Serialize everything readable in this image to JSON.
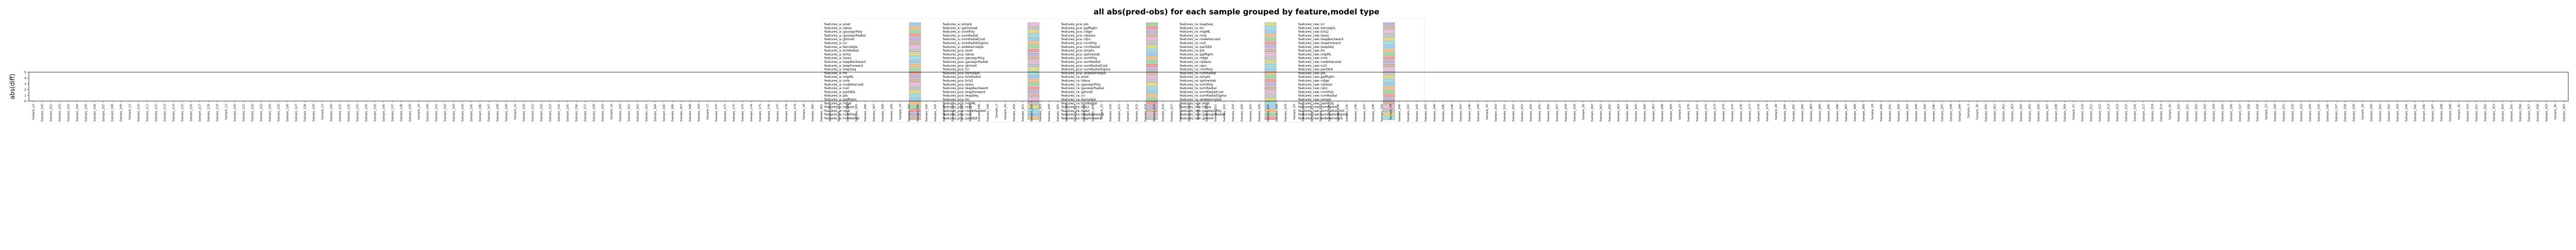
{
  "chart_data": {
    "type": "bar",
    "title": "all abs(pred-obs) for each sample grouped by feature,model type",
    "xlabel": "",
    "ylabel": "abs(diff)",
    "ylim": [
      0,
      5
    ],
    "yticks": [
      "0",
      "1",
      "2",
      "3",
      "4",
      "5"
    ],
    "y_values_legible": false,
    "legend_location": "upper-center",
    "legend_columns": 5,
    "categories": [
      "Sample_10",
      "Sample_100",
      "Sample_101",
      "Sample_102",
      "Sample_103",
      "Sample_104",
      "Sample_105",
      "Sample_106",
      "Sample_107",
      "Sample_108",
      "Sample_109",
      "Sample_11",
      "Sample_110",
      "Sample_111",
      "Sample_112",
      "Sample_113",
      "Sample_114",
      "Sample_115",
      "Sample_116",
      "Sample_117",
      "Sample_118",
      "Sample_119",
      "Sample_12",
      "Sample_120",
      "Sample_121",
      "Sample_122",
      "Sample_123",
      "Sample_124",
      "Sample_125",
      "Sample_126",
      "Sample_127",
      "Sample_128",
      "Sample_129",
      "Sample_13",
      "Sample_130",
      "Sample_131",
      "Sample_132",
      "Sample_133",
      "Sample_134",
      "Sample_135",
      "Sample_136",
      "Sample_137",
      "Sample_138",
      "Sample_139",
      "Sample_14",
      "Sample_140",
      "Sample_141",
      "Sample_142",
      "Sample_143",
      "Sample_144",
      "Sample_145",
      "Sample_146",
      "Sample_147",
      "Sample_148",
      "Sample_149",
      "Sample_15",
      "Sample_150",
      "Sample_151",
      "Sample_152",
      "Sample_153",
      "Sample_154",
      "Sample_155",
      "Sample_156",
      "Sample_157",
      "Sample_158",
      "Sample_159",
      "Sample_16",
      "Sample_160",
      "Sample_161",
      "Sample_162",
      "Sample_163",
      "Sample_164",
      "Sample_165",
      "Sample_166",
      "Sample_167",
      "Sample_168",
      "Sample_169",
      "Sample_17",
      "Sample_170",
      "Sample_171",
      "Sample_172",
      "Sample_173",
      "Sample_174",
      "Sample_175",
      "Sample_176",
      "Sample_177",
      "Sample_178",
      "Sample_179",
      "Sample_18",
      "Sample_180",
      "Sample_181",
      "Sample_182",
      "Sample_183",
      "Sample_184",
      "Sample_185",
      "Sample_186",
      "Sample_187",
      "Sample_188",
      "Sample_189",
      "Sample_19",
      "Sample_190",
      "Sample_191",
      "Sample_192",
      "Sample_193",
      "Sample_194",
      "Sample_195",
      "Sample_196",
      "Sample_197",
      "Sample_198",
      "Sample_199",
      "Sample_2",
      "Sample_20",
      "Sample_200",
      "Sample_201",
      "Sample_202",
      "Sample_203",
      "Sample_204",
      "Sample_205",
      "Sample_206",
      "Sample_207",
      "Sample_208",
      "Sample_209",
      "Sample_21",
      "Sample_210",
      "Sample_211",
      "Sample_212",
      "Sample_213",
      "Sample_214",
      "Sample_215",
      "Sample_216",
      "Sample_217",
      "Sample_218",
      "Sample_219",
      "Sample_22",
      "Sample_220",
      "Sample_221",
      "Sample_222",
      "Sample_223",
      "Sample_224",
      "Sample_225",
      "Sample_226",
      "Sample_227",
      "Sample_228",
      "Sample_229",
      "Sample_23",
      "Sample_230",
      "Sample_231",
      "Sample_232",
      "Sample_233",
      "Sample_234",
      "Sample_235",
      "Sample_236",
      "Sample_237",
      "Sample_238",
      "Sample_239",
      "Sample_24",
      "Sample_240",
      "Sample_241",
      "Sample_242",
      "Sample_243",
      "Sample_244",
      "Sample_245",
      "Sample_246",
      "Sample_247",
      "Sample_248",
      "Sample_249",
      "Sample_25",
      "Sample_250",
      "Sample_251",
      "Sample_252",
      "Sample_253",
      "Sample_254",
      "Sample_255",
      "Sample_256",
      "Sample_257",
      "Sample_258",
      "Sample_259",
      "Sample_26",
      "Sample_260",
      "Sample_261",
      "Sample_262",
      "Sample_263",
      "Sample_264",
      "Sample_265",
      "Sample_266",
      "Sample_267",
      "Sample_268",
      "Sample_269",
      "Sample_27",
      "Sample_270",
      "Sample_271",
      "Sample_272",
      "Sample_273",
      "Sample_274",
      "Sample_275",
      "Sample_276",
      "Sample_277",
      "Sample_278",
      "Sample_279",
      "Sample_28",
      "Sample_280",
      "Sample_281",
      "Sample_282",
      "Sample_283",
      "Sample_284",
      "Sample_285",
      "Sample_286",
      "Sample_287",
      "Sample_288",
      "Sample_289",
      "Sample_29",
      "Sample_290",
      "Sample_291",
      "Sample_292",
      "Sample_293",
      "Sample_294",
      "Sample_295",
      "Sample_296",
      "Sample_297",
      "Sample_298",
      "Sample_299",
      "Sample_3",
      "Sample_30",
      "Sample_300",
      "Sample_301",
      "Sample_302",
      "Sample_303",
      "Sample_304",
      "Sample_305",
      "Sample_306",
      "Sample_307",
      "Sample_308",
      "Sample_309",
      "Sample_31",
      "Sample_310",
      "Sample_311",
      "Sample_312",
      "Sample_313",
      "Sample_314",
      "Sample_315",
      "Sample_316",
      "Sample_317",
      "Sample_318",
      "Sample_319",
      "Sample_32",
      "Sample_320",
      "Sample_321",
      "Sample_322",
      "Sample_323",
      "Sample_324",
      "Sample_325",
      "Sample_326",
      "Sample_327",
      "Sample_328",
      "Sample_329",
      "Sample_33",
      "Sample_330",
      "Sample_331",
      "Sample_332",
      "Sample_333",
      "Sample_334",
      "Sample_335",
      "Sample_336",
      "Sample_337",
      "Sample_338",
      "Sample_339",
      "Sample_34",
      "Sample_340",
      "Sample_341",
      "Sample_342",
      "Sample_343",
      "Sample_344",
      "Sample_345",
      "Sample_346",
      "Sample_347",
      "Sample_348",
      "Sample_349",
      "Sample_35",
      "Sample_350",
      "Sample_351",
      "Sample_352",
      "Sample_353",
      "Sample_354",
      "Sample_355",
      "Sample_356",
      "Sample_357",
      "Sample_358",
      "Sample_359",
      "Sample_36",
      "Sample_360"
    ],
    "legend": [
      {
        "name": "features_a::enet",
        "color": "#9bd3f0"
      },
      {
        "name": "features_a::lsboa",
        "color": "#f3c58e"
      },
      {
        "name": "features_a::gaussprPoly",
        "color": "#a8dba0"
      },
      {
        "name": "features_a::gaussprRadial",
        "color": "#f2a0a0"
      },
      {
        "name": "features_a::glmnet",
        "color": "#c8b4e0"
      },
      {
        "name": "features_a::icr",
        "color": "#d7b8a8"
      },
      {
        "name": "features_a::kernelpls",
        "color": "#f4bde0"
      },
      {
        "name": "features_a::krlsRadial",
        "color": "#c8c8c8"
      },
      {
        "name": "features_a::krls2",
        "color": "#e0e08a"
      },
      {
        "name": "features_a::lasso",
        "color": "#9fe3ea"
      },
      {
        "name": "features_a::leapBackward",
        "color": "#9bd3f0"
      },
      {
        "name": "features_a::leapForward",
        "color": "#f3c58e"
      },
      {
        "name": "features_a::leapSeq",
        "color": "#a8dba0"
      },
      {
        "name": "features_a::lm",
        "color": "#f2a0a0"
      },
      {
        "name": "features_a::mlpML",
        "color": "#c8b4e0"
      },
      {
        "name": "features_a::nnls",
        "color": "#d7b8a8"
      },
      {
        "name": "features_a::nodeHarvest",
        "color": "#f4bde0"
      },
      {
        "name": "features_a::null",
        "color": "#c8c8c8"
      },
      {
        "name": "features_a::parDEA",
        "color": "#e0e08a"
      },
      {
        "name": "features_a::pls",
        "color": "#9fe3ea"
      },
      {
        "name": "features_a::ppfRglm",
        "color": "#9bd3f0"
      },
      {
        "name": "features_a::ridge",
        "color": "#f3c58e"
      },
      {
        "name": "features_a::rqlasso",
        "color": "#a8dba0"
      },
      {
        "name": "features_a::rqnc",
        "color": "#f2a0a0"
      },
      {
        "name": "features_a::rvmPoly",
        "color": "#c8b4e0"
      },
      {
        "name": "features_a::rvmRadial",
        "color": "#d7b8a8"
      },
      {
        "name": "features_a::simpls",
        "color": "#f4bde0"
      },
      {
        "name": "features_a::splineslab",
        "color": "#c8c8c8"
      },
      {
        "name": "features_a::svmPoly",
        "color": "#e0e08a"
      },
      {
        "name": "features_a::svmRadial",
        "color": "#9fe3ea"
      },
      {
        "name": "features_a::svmRadialCost",
        "color": "#9bd3f0"
      },
      {
        "name": "features_a::svmRadialSigma",
        "color": "#f3c58e"
      },
      {
        "name": "features_a::widekernelpls",
        "color": "#a8dba0"
      },
      {
        "name": "features_pca::enet",
        "color": "#f2a0a0"
      },
      {
        "name": "features_pca::lsboa",
        "color": "#c8b4e0"
      },
      {
        "name": "features_pca::gaussprPoly",
        "color": "#d7b8a8"
      },
      {
        "name": "features_pca::gaussprRadial",
        "color": "#f4bde0"
      },
      {
        "name": "features_pca::glmnet",
        "color": "#c8c8c8"
      },
      {
        "name": "features_pca::icr",
        "color": "#e0e08a"
      },
      {
        "name": "features_pca::kernelpls",
        "color": "#9fe3ea"
      },
      {
        "name": "features_pca::krlsRadial",
        "color": "#9bd3f0"
      },
      {
        "name": "features_pca::krls2",
        "color": "#f3c58e"
      },
      {
        "name": "features_pca::lasso",
        "color": "#a8dba0"
      },
      {
        "name": "features_pca::leapBackward",
        "color": "#f2a0a0"
      },
      {
        "name": "features_pca::leapForward",
        "color": "#c8b4e0"
      },
      {
        "name": "features_pca::leapSeq",
        "color": "#d7b8a8"
      },
      {
        "name": "features_pca::lm",
        "color": "#f4bde0"
      },
      {
        "name": "features_pca::mlpML",
        "color": "#c8c8c8"
      },
      {
        "name": "features_pca::nnls",
        "color": "#e0e08a"
      },
      {
        "name": "features_pca::nodeHarvest",
        "color": "#9fe3ea"
      },
      {
        "name": "features_pca::null",
        "color": "#9bd3f0"
      },
      {
        "name": "features_pca::parDEA",
        "color": "#f3c58e"
      },
      {
        "name": "features_pca::pls",
        "color": "#a8dba0"
      },
      {
        "name": "features_pca::ppfRglm",
        "color": "#f2a0a0"
      },
      {
        "name": "features_pca::ridge",
        "color": "#c8b4e0"
      },
      {
        "name": "features_pca::rqlasso",
        "color": "#d7b8a8"
      },
      {
        "name": "features_pca::rqnc",
        "color": "#f4bde0"
      },
      {
        "name": "features_pca::rvmPoly",
        "color": "#c8c8c8"
      },
      {
        "name": "features_pca::rvmRadial",
        "color": "#e0e08a"
      },
      {
        "name": "features_pca::simpls",
        "color": "#9fe3ea"
      },
      {
        "name": "features_pca::splineslab",
        "color": "#9bd3f0"
      },
      {
        "name": "features_pca::svmPoly",
        "color": "#f3c58e"
      },
      {
        "name": "features_pca::svmRadial",
        "color": "#a8dba0"
      },
      {
        "name": "features_pca::svmRadialCost",
        "color": "#f2a0a0"
      },
      {
        "name": "features_pca::svmRadialSigma",
        "color": "#c8b4e0"
      },
      {
        "name": "features_pca::widekernelpls",
        "color": "#d7b8a8"
      },
      {
        "name": "features_ra::enet",
        "color": "#f4bde0"
      },
      {
        "name": "features_ra::lsboa",
        "color": "#c8c8c8"
      },
      {
        "name": "features_ra::gaussprPoly",
        "color": "#e0e08a"
      },
      {
        "name": "features_ra::gaussprRadial",
        "color": "#9fe3ea"
      },
      {
        "name": "features_ra::glmnet",
        "color": "#9bd3f0"
      },
      {
        "name": "features_ra::icr",
        "color": "#f3c58e"
      },
      {
        "name": "features_ra::kernelpls",
        "color": "#a8dba0"
      },
      {
        "name": "features_ra::krlsRadial",
        "color": "#f2a0a0"
      },
      {
        "name": "features_ra::krls2",
        "color": "#c8b4e0"
      },
      {
        "name": "features_ra::lasso",
        "color": "#d7b8a8"
      },
      {
        "name": "features_ra::leapBackward",
        "color": "#f4bde0"
      },
      {
        "name": "features_ra::leapForward",
        "color": "#c8c8c8"
      },
      {
        "name": "features_ra::leapSeq",
        "color": "#e0e08a"
      },
      {
        "name": "features_ra::lm",
        "color": "#9fe3ea"
      },
      {
        "name": "features_ra::mlpML",
        "color": "#9bd3f0"
      },
      {
        "name": "features_ra::nnls",
        "color": "#f3c58e"
      },
      {
        "name": "features_ra::nodeHarvest",
        "color": "#a8dba0"
      },
      {
        "name": "features_ra::null",
        "color": "#f2a0a0"
      },
      {
        "name": "features_ra::parDEA",
        "color": "#c8b4e0"
      },
      {
        "name": "features_ra::pls",
        "color": "#d7b8a8"
      },
      {
        "name": "features_ra::ppfRglm",
        "color": "#f4bde0"
      },
      {
        "name": "features_ra::ridge",
        "color": "#c8c8c8"
      },
      {
        "name": "features_ra::rqlasso",
        "color": "#e0e08a"
      },
      {
        "name": "features_ra::rqnc",
        "color": "#9fe3ea"
      },
      {
        "name": "features_ra::rvmPoly",
        "color": "#9bd3f0"
      },
      {
        "name": "features_ra::rvmRadial",
        "color": "#f3c58e"
      },
      {
        "name": "features_ra::simpls",
        "color": "#a8dba0"
      },
      {
        "name": "features_ra::splineslab",
        "color": "#f2a0a0"
      },
      {
        "name": "features_ra::svmPoly",
        "color": "#c8b4e0"
      },
      {
        "name": "features_ra::svmRadial",
        "color": "#d7b8a8"
      },
      {
        "name": "features_ra::svmRadialCost",
        "color": "#f4bde0"
      },
      {
        "name": "features_ra::svmRadialSigma",
        "color": "#c8c8c8"
      },
      {
        "name": "features_ra::widekernelpls",
        "color": "#e0e08a"
      },
      {
        "name": "features_raw::enet",
        "color": "#9fe3ea"
      },
      {
        "name": "features_raw::lsboa",
        "color": "#9bd3f0"
      },
      {
        "name": "features_raw::gaussprPoly",
        "color": "#f3c58e"
      },
      {
        "name": "features_raw::gaussprRadial",
        "color": "#a8dba0"
      },
      {
        "name": "features_raw::glmnet",
        "color": "#f2a0a0"
      },
      {
        "name": "features_raw::icr",
        "color": "#c8b4e0"
      },
      {
        "name": "features_raw::kernelpls",
        "color": "#d7b8a8"
      },
      {
        "name": "features_raw::krls2",
        "color": "#f4bde0"
      },
      {
        "name": "features_raw::lasso",
        "color": "#c8c8c8"
      },
      {
        "name": "features_raw::leapBackward",
        "color": "#e0e08a"
      },
      {
        "name": "features_raw::leapForward",
        "color": "#9fe3ea"
      },
      {
        "name": "features_raw::leapSeq",
        "color": "#9bd3f0"
      },
      {
        "name": "features_raw::lm",
        "color": "#f3c58e"
      },
      {
        "name": "features_raw::mlpML",
        "color": "#a8dba0"
      },
      {
        "name": "features_raw::nnls",
        "color": "#f2a0a0"
      },
      {
        "name": "features_raw::nodeHarvest",
        "color": "#c8b4e0"
      },
      {
        "name": "features_raw::null",
        "color": "#d7b8a8"
      },
      {
        "name": "features_raw::parDEA",
        "color": "#f4bde0"
      },
      {
        "name": "features_raw::pls",
        "color": "#c8c8c8"
      },
      {
        "name": "features_raw::ppfRglm",
        "color": "#e0e08a"
      },
      {
        "name": "features_raw::ridge",
        "color": "#9fe3ea"
      },
      {
        "name": "features_raw::rqlasso",
        "color": "#9bd3f0"
      },
      {
        "name": "features_raw::rqnc",
        "color": "#f3c58e"
      },
      {
        "name": "features_raw::rvmPoly",
        "color": "#a8dba0"
      },
      {
        "name": "features_raw::rvmRadial",
        "color": "#f2a0a0"
      },
      {
        "name": "features_raw::simpls",
        "color": "#c8b4e0"
      },
      {
        "name": "features_raw::svmPoly",
        "color": "#d7b8a8"
      },
      {
        "name": "features_raw::svmRadial",
        "color": "#f4bde0"
      },
      {
        "name": "features_raw::svmRadialCost",
        "color": "#c8c8c8"
      },
      {
        "name": "features_raw::svmRadialSigma",
        "color": "#e0e08a"
      },
      {
        "name": "features_raw::widekernelpls",
        "color": "#9fe3ea"
      }
    ]
  }
}
